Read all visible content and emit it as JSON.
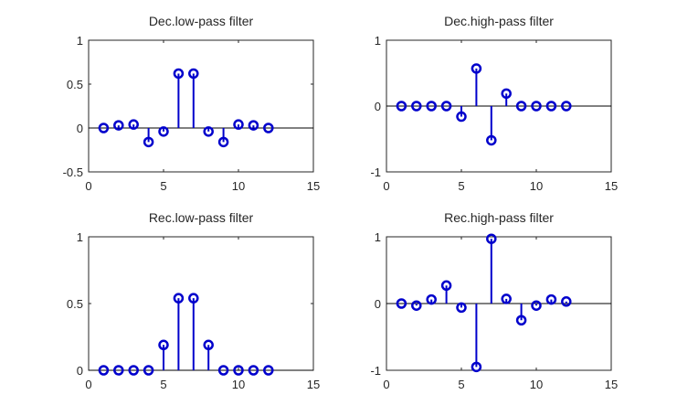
{
  "figure": {
    "background": "#ffffff"
  },
  "chart_data": [
    {
      "type": "stem",
      "title": "Dec.low-pass filter",
      "x": [
        1,
        2,
        3,
        4,
        5,
        6,
        7,
        8,
        9,
        10,
        11,
        12
      ],
      "values": [
        0.0,
        0.03,
        0.04,
        -0.16,
        -0.04,
        0.62,
        0.62,
        -0.04,
        -0.16,
        0.04,
        0.03,
        0.0
      ],
      "xlim": [
        0,
        15
      ],
      "ylim": [
        -0.5,
        1
      ],
      "xticks": [
        0,
        5,
        10,
        15
      ],
      "yticks": [
        -0.5,
        0,
        0.5,
        1
      ],
      "xticklabels": [
        "0",
        "5",
        "10",
        "15"
      ],
      "yticklabels": [
        "-0.5",
        "0",
        "0.5",
        "1"
      ],
      "color": "#0000cc",
      "grid": false
    },
    {
      "type": "stem",
      "title": "Dec.high-pass filter",
      "x": [
        1,
        2,
        3,
        4,
        5,
        6,
        7,
        8,
        9,
        10,
        11,
        12
      ],
      "values": [
        0.0,
        0.0,
        0.0,
        0.0,
        -0.16,
        0.57,
        -0.52,
        0.19,
        0.0,
        0.0,
        0.0,
        0.0
      ],
      "xlim": [
        0,
        15
      ],
      "ylim": [
        -1,
        1
      ],
      "xticks": [
        0,
        5,
        10,
        15
      ],
      "yticks": [
        -1,
        0,
        1
      ],
      "xticklabels": [
        "0",
        "5",
        "10",
        "15"
      ],
      "yticklabels": [
        "-1",
        "0",
        "1"
      ],
      "color": "#0000cc",
      "grid": false
    },
    {
      "type": "stem",
      "title": "Rec.low-pass filter",
      "x": [
        1,
        2,
        3,
        4,
        5,
        6,
        7,
        8,
        9,
        10,
        11,
        12
      ],
      "values": [
        0.0,
        0.0,
        0.0,
        0.0,
        0.19,
        0.54,
        0.54,
        0.19,
        0.0,
        0.0,
        0.0,
        0.0
      ],
      "xlim": [
        0,
        15
      ],
      "ylim": [
        0,
        1
      ],
      "xticks": [
        0,
        5,
        10,
        15
      ],
      "yticks": [
        0,
        0.5,
        1
      ],
      "xticklabels": [
        "0",
        "5",
        "10",
        "15"
      ],
      "yticklabels": [
        "0",
        "0.5",
        "1"
      ],
      "color": "#0000cc",
      "grid": false
    },
    {
      "type": "stem",
      "title": "Rec.high-pass filter",
      "x": [
        1,
        2,
        3,
        4,
        5,
        6,
        7,
        8,
        9,
        10,
        11,
        12
      ],
      "values": [
        0.0,
        -0.03,
        0.06,
        0.27,
        -0.06,
        -0.95,
        0.97,
        0.07,
        -0.25,
        -0.03,
        0.06,
        0.03
      ],
      "xlim": [
        0,
        15
      ],
      "ylim": [
        -1,
        1
      ],
      "xticks": [
        0,
        5,
        10,
        15
      ],
      "yticks": [
        -1,
        0,
        1
      ],
      "xticklabels": [
        "0",
        "5",
        "10",
        "15"
      ],
      "yticklabels": [
        "-1",
        "0",
        "1"
      ],
      "color": "#0000cc",
      "grid": false
    }
  ]
}
